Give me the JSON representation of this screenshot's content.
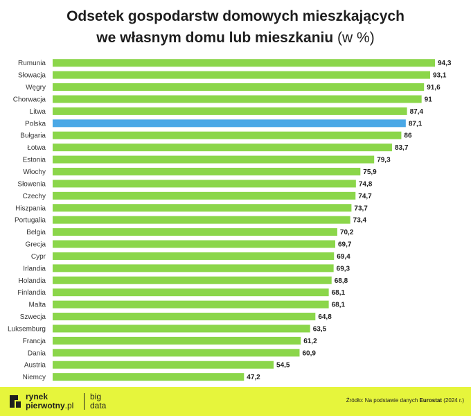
{
  "title": {
    "line1": "Odsetek gospodarstw domowych mieszkających",
    "line2": "we własnym domu  lub mieszkaniu",
    "unit": "(w %)"
  },
  "colors": {
    "bar": "#8bd64a",
    "highlight": "#4aa8e6",
    "label": "#333333",
    "value": "#1e1e1e",
    "footer": "#e6f53c"
  },
  "chart_data": {
    "type": "bar",
    "orientation": "horizontal",
    "title": "Odsetek gospodarstw domowych mieszkających we własnym domu  lub mieszkaniu (w %)",
    "xlabel": "",
    "ylabel": "",
    "xlim": [
      0,
      94.3
    ],
    "grid": false,
    "highlight": "Polska",
    "categories": [
      "Rumunia",
      "Słowacja",
      "Węgry",
      "Chorwacja",
      "Litwa",
      "Polska",
      "Bułgaria",
      "Łotwa",
      "Estonia",
      "Włochy",
      "Słowenia",
      "Czechy",
      "Hiszpania",
      "Portugalia",
      "Belgia",
      "Grecja",
      "Cypr",
      "Irlandia",
      "Holandia",
      "Finlandia",
      "Malta",
      "Szwecja",
      "Luksemburg",
      "Francja",
      "Dania",
      "Austria",
      "Niemcy"
    ],
    "values": [
      94.3,
      93.1,
      91.6,
      91,
      87.4,
      87.1,
      86,
      83.7,
      79.3,
      75.9,
      74.8,
      74.7,
      73.7,
      73.4,
      70.2,
      69.7,
      69.4,
      69.3,
      68.8,
      68.1,
      68.1,
      64.8,
      63.5,
      61.2,
      60.9,
      54.5,
      47.2
    ],
    "value_labels": [
      "94,3",
      "93,1",
      "91,6",
      "91",
      "87,4",
      "87,1",
      "86",
      "83,7",
      "79,3",
      "75,9",
      "74,8",
      "74,7",
      "73,7",
      "73,4",
      "70,2",
      "69,7",
      "69,4",
      "69,3",
      "68,8",
      "68,1",
      "68,1",
      "64,8",
      "63,5",
      "61,2",
      "60,9",
      "54,5",
      "47,2"
    ]
  },
  "footer": {
    "logo_line1": "rynek",
    "logo_line2": "pierwotny",
    "logo_tld": ".pl",
    "logo2_line1": "big",
    "logo2_line2": "data",
    "source_prefix": "Źródło: Na podstawie danych ",
    "source_name": "Eurostat",
    "source_suffix": " (2024 r.)"
  }
}
